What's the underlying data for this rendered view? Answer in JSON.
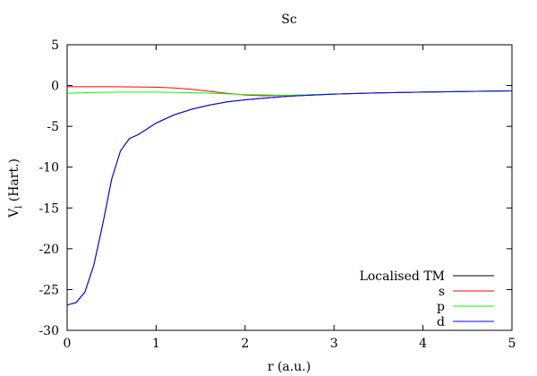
{
  "chart_data": {
    "type": "line",
    "title": "Sc",
    "xlabel": "r (a.u.)",
    "ylabel_main": "V",
    "ylabel_sub": "l",
    "ylabel_rest": " (Hart.)",
    "xlim": [
      0,
      5
    ],
    "ylim": [
      -30,
      5
    ],
    "xticks": [
      0,
      1,
      2,
      3,
      4,
      5
    ],
    "yticks": [
      -30,
      -25,
      -20,
      -15,
      -10,
      -5,
      0,
      5
    ],
    "legend_position": "bottom-right",
    "grid": false,
    "series": [
      {
        "name": "Localised TM",
        "color": "#000000",
        "x": [
          0,
          0.1,
          0.2,
          0.3,
          0.4,
          0.5,
          0.6,
          0.7,
          0.8,
          0.9,
          1.0,
          1.2,
          1.4,
          1.6,
          1.8,
          2.0,
          2.2,
          2.5,
          3.0,
          3.5,
          4.0,
          4.5,
          5.0
        ],
        "y": [
          -26.9,
          -26.6,
          -25.3,
          -22.0,
          -17.0,
          -11.5,
          -8.0,
          -6.5,
          -6.0,
          -5.3,
          -4.6,
          -3.6,
          -2.9,
          -2.4,
          -2.0,
          -1.75,
          -1.55,
          -1.3,
          -1.05,
          -0.9,
          -0.8,
          -0.72,
          -0.65
        ]
      },
      {
        "name": "s",
        "color": "#ff0000",
        "x": [
          0,
          0.5,
          1.0,
          1.2,
          1.4,
          1.6,
          1.8,
          2.0,
          2.2,
          2.5,
          3.0,
          3.5,
          4.0,
          4.5,
          5.0
        ],
        "y": [
          -0.15,
          -0.15,
          -0.2,
          -0.3,
          -0.45,
          -0.7,
          -0.95,
          -1.15,
          -1.25,
          -1.2,
          -1.05,
          -0.9,
          -0.8,
          -0.72,
          -0.65
        ]
      },
      {
        "name": "p",
        "color": "#00ff00",
        "x": [
          0,
          0.3,
          0.6,
          1.0,
          1.5,
          2.0,
          2.5,
          3.0,
          3.5,
          4.0,
          4.5,
          5.0
        ],
        "y": [
          -0.95,
          -0.85,
          -0.8,
          -0.8,
          -0.9,
          -1.1,
          -1.2,
          -1.05,
          -0.9,
          -0.8,
          -0.72,
          -0.65
        ]
      },
      {
        "name": "d",
        "color": "#0000ff",
        "x": [
          0,
          0.1,
          0.2,
          0.3,
          0.4,
          0.5,
          0.6,
          0.7,
          0.8,
          0.9,
          1.0,
          1.2,
          1.4,
          1.6,
          1.8,
          2.0,
          2.2,
          2.5,
          3.0,
          3.5,
          4.0,
          4.5,
          5.0
        ],
        "y": [
          -26.9,
          -26.6,
          -25.3,
          -22.0,
          -17.0,
          -11.5,
          -8.0,
          -6.5,
          -6.0,
          -5.3,
          -4.6,
          -3.6,
          -2.9,
          -2.4,
          -2.0,
          -1.75,
          -1.55,
          -1.3,
          -1.05,
          -0.9,
          -0.8,
          -0.72,
          -0.65
        ]
      }
    ]
  }
}
